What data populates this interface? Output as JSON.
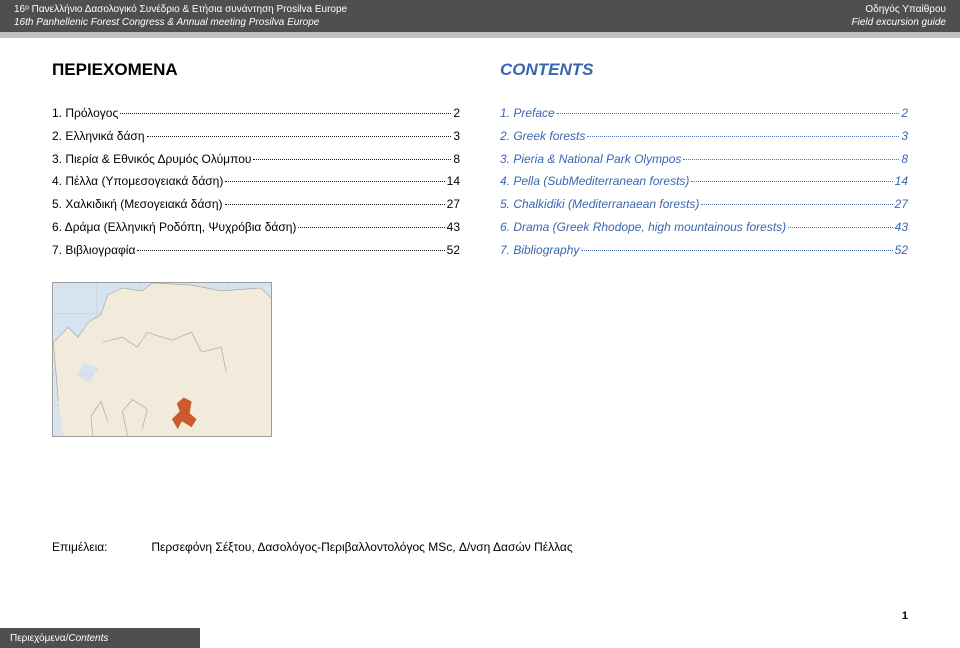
{
  "header": {
    "left_top": "16ᵒ Πανελλήνιο Δασολογικό Συνέδριο & Ετήσια συνάντηση Prosilva Europe",
    "left_bottom": "16th Panhellenic Forest Congress & Annual meeting Prosilva Europe",
    "right_top": "Οδηγός Υπαίθρου",
    "right_bottom": "Field excursion guide"
  },
  "colors": {
    "header_bg": "#4f4f4f",
    "under_bar": "#c0c0c0",
    "en_blue": "#3a66b0",
    "text": "#000000",
    "map_sea": "#d7e3ee",
    "map_land": "#f2eada",
    "map_border": "#9e9e9e",
    "map_highlight": "#c95b2e"
  },
  "titles": {
    "greek": "ΠΕΡΙΕΧΟΜΕΝΑ",
    "en": "CONTENTS"
  },
  "toc_greek": [
    {
      "label": "1. Πρόλογος",
      "page": "2"
    },
    {
      "label": "2. Ελληνικά δάση",
      "page": "3"
    },
    {
      "label": "3. Πιερία & Εθνικός Δρυμός Ολύμπου",
      "page": "8"
    },
    {
      "label": "4. Πέλλα (Υπομεσογειακά δάση)",
      "page": "14"
    },
    {
      "label": "5. Χαλκιδική (Μεσογειακά δάση)",
      "page": "27"
    },
    {
      "label": "6. Δράμα (Ελληνική Ροδόπη, Ψυχρόβια δάση)",
      "page": "43"
    },
    {
      "label": "7. Βιβλιογραφία",
      "page": "52"
    }
  ],
  "toc_en": [
    {
      "label": "1. Preface",
      "page": "2"
    },
    {
      "label": "2. Greek forests",
      "page": "3"
    },
    {
      "label": "3. Pieria  & National Park Olympos",
      "page": "8"
    },
    {
      "label": "4. Pella (SubMediterranean forests)",
      "page": "14"
    },
    {
      "label": "5. Chalkidiki (Mediterranaean forests)",
      "page": "27"
    },
    {
      "label": "6. Drama (Greek Rhodope, high mountainous forests)",
      "page": "43"
    },
    {
      "label": "7. Bibliography",
      "page": "52"
    }
  ],
  "editor": {
    "label": "Επιμέλεια:",
    "value": "Περσεφόνη Σέξτου, Δασολόγος-Περιβαλλοντολόγος MSc,  Δ/νση Δασών Πέλλας"
  },
  "footer": {
    "greek": "Περιεχόμενα",
    "sep": " / ",
    "en": "Contents"
  },
  "page_number": "1",
  "map": {
    "sea_fill": "#d7e3ee",
    "land_fill": "#f2eada",
    "grid_stroke": "#c9c9c9",
    "border_stroke": "#a9a9a9",
    "highlight_fill": "#c95b2e"
  }
}
